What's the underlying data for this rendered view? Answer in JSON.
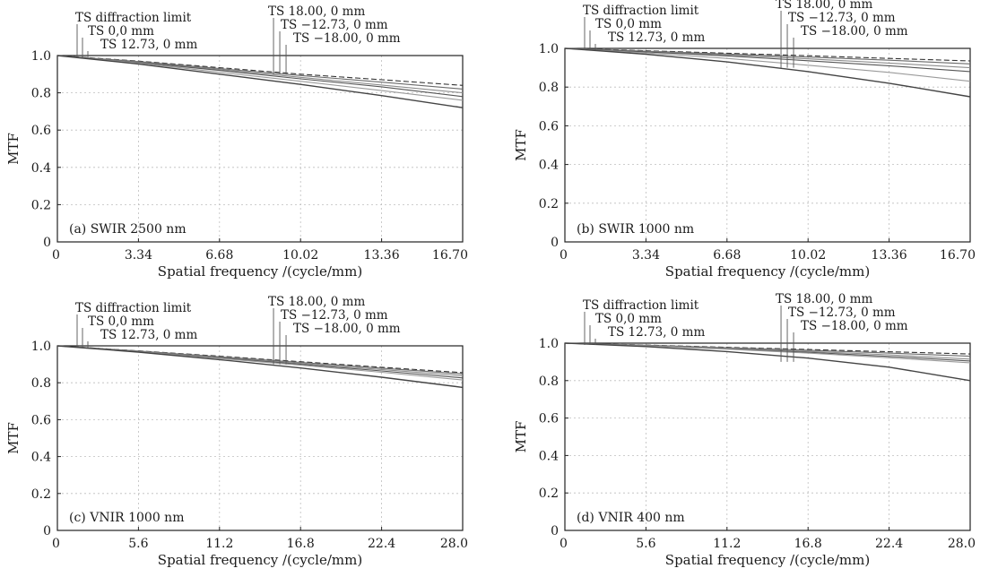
{
  "chart_data": [
    {
      "type": "line",
      "panel_label": "(a) SWIR 2500 nm",
      "xlabel": "Spatial frequency /(cycle/mm)",
      "ylabel": "MTF",
      "xlim": [
        0,
        16.7
      ],
      "ylim": [
        0,
        1.0
      ],
      "xticks": [
        "0",
        "3.34",
        "6.68",
        "10.02",
        "13.36",
        "16.70"
      ],
      "yticks": [
        "0",
        "0.2",
        "0.4",
        "0.6",
        "0.8",
        "1.0"
      ],
      "grid": true,
      "legend_labels": [
        "TS diffraction limit",
        "TS 0,0 mm",
        "TS 12.73, 0 mm",
        "TS 18.00, 0 mm",
        "TS −12.73, 0 mm",
        "TS −18.00, 0 mm"
      ],
      "x": [
        0,
        3.34,
        6.68,
        10.02,
        13.36,
        16.7
      ],
      "series": [
        {
          "values": [
            1.0,
            0.97,
            0.935,
            0.9,
            0.87,
            0.84
          ],
          "style": "dashed"
        },
        {
          "values": [
            1.0,
            0.968,
            0.93,
            0.893,
            0.857,
            0.82
          ],
          "style": "solid"
        },
        {
          "values": [
            1.0,
            0.965,
            0.925,
            0.883,
            0.842,
            0.8
          ],
          "style": "solid"
        },
        {
          "values": [
            1.0,
            0.963,
            0.92,
            0.875,
            0.832,
            0.78
          ],
          "style": "solid"
        },
        {
          "values": [
            1.0,
            0.96,
            0.91,
            0.862,
            0.812,
            0.76
          ],
          "style": "solid"
        },
        {
          "values": [
            1.0,
            0.955,
            0.9,
            0.845,
            0.785,
            0.72
          ],
          "style": "solid"
        }
      ]
    },
    {
      "type": "line",
      "panel_label": "(b) SWIR 1000 nm",
      "xlabel": "Spatial frequency /(cycle/mm)",
      "ylabel": "MTF",
      "xlim": [
        0,
        16.7
      ],
      "ylim": [
        0,
        1.0
      ],
      "xticks": [
        "0",
        "3.34",
        "6.68",
        "10.02",
        "13.36",
        "16.70"
      ],
      "yticks": [
        "0",
        "0.2",
        "0.4",
        "0.6",
        "0.8",
        "1.0"
      ],
      "grid": true,
      "legend_labels": [
        "TS diffraction limit",
        "TS 0,0 mm",
        "TS 12.73, 0 mm",
        "TS 18.00, 0 mm",
        "TS −12.73, 0 mm",
        "TS −18.00, 0 mm"
      ],
      "x": [
        0,
        3.34,
        6.68,
        10.02,
        13.36,
        16.7
      ],
      "series": [
        {
          "values": [
            1.0,
            0.988,
            0.975,
            0.962,
            0.948,
            0.935
          ],
          "style": "dashed"
        },
        {
          "values": [
            1.0,
            0.986,
            0.971,
            0.955,
            0.939,
            0.92
          ],
          "style": "solid"
        },
        {
          "values": [
            1.0,
            0.984,
            0.966,
            0.946,
            0.924,
            0.9
          ],
          "style": "solid"
        },
        {
          "values": [
            1.0,
            0.982,
            0.961,
            0.936,
            0.91,
            0.88
          ],
          "style": "solid"
        },
        {
          "values": [
            1.0,
            0.977,
            0.948,
            0.913,
            0.876,
            0.83
          ],
          "style": "solid"
        },
        {
          "values": [
            1.0,
            0.97,
            0.93,
            0.88,
            0.82,
            0.75
          ],
          "style": "solid"
        }
      ]
    },
    {
      "type": "line",
      "panel_label": "(c) VNIR 1000 nm",
      "xlabel": "Spatial frequency /(cycle/mm)",
      "ylabel": "MTF",
      "xlim": [
        0,
        28.0
      ],
      "ylim": [
        0,
        1.0
      ],
      "xticks": [
        "0",
        "5.6",
        "11.2",
        "16.8",
        "22.4",
        "28.0"
      ],
      "yticks": [
        "0",
        "0.2",
        "0.4",
        "0.6",
        "0.8",
        "1.0"
      ],
      "grid": true,
      "legend_labels": [
        "TS diffraction limit",
        "TS 0,0 mm",
        "TS 12.73, 0 mm",
        "TS 18.00, 0 mm",
        "TS −12.73, 0 mm",
        "TS −18.00, 0 mm"
      ],
      "x": [
        0,
        5.6,
        11.2,
        16.8,
        22.4,
        28.0
      ],
      "series": [
        {
          "values": [
            1.0,
            0.973,
            0.944,
            0.914,
            0.884,
            0.855
          ],
          "style": "dashed"
        },
        {
          "values": [
            1.0,
            0.972,
            0.941,
            0.91,
            0.879,
            0.848
          ],
          "style": "solid"
        },
        {
          "values": [
            1.0,
            0.971,
            0.938,
            0.905,
            0.872,
            0.838
          ],
          "style": "solid"
        },
        {
          "values": [
            1.0,
            0.97,
            0.935,
            0.9,
            0.864,
            0.826
          ],
          "style": "solid"
        },
        {
          "values": [
            1.0,
            0.969,
            0.932,
            0.895,
            0.857,
            0.815
          ],
          "style": "solid"
        },
        {
          "values": [
            1.0,
            0.966,
            0.925,
            0.88,
            0.83,
            0.775
          ],
          "style": "solid"
        }
      ]
    },
    {
      "type": "line",
      "panel_label": "(d) VNIR 400 nm",
      "xlabel": "Spatial frequency /(cycle/mm)",
      "ylabel": "MTF",
      "xlim": [
        0,
        28.0
      ],
      "ylim": [
        0,
        1.0
      ],
      "xticks": [
        "0",
        "5.6",
        "11.2",
        "16.8",
        "22.4",
        "28.0"
      ],
      "yticks": [
        "0",
        "0.2",
        "0.4",
        "0.6",
        "0.8",
        "1.0"
      ],
      "grid": true,
      "legend_labels": [
        "TS diffraction limit",
        "TS 0,0 mm",
        "TS 12.73, 0 mm",
        "TS 18.00, 0 mm",
        "TS −12.73, 0 mm",
        "TS −18.00, 0 mm"
      ],
      "x": [
        0,
        5.6,
        11.2,
        16.8,
        22.4,
        28.0
      ],
      "series": [
        {
          "values": [
            1.0,
            0.99,
            0.978,
            0.966,
            0.954,
            0.942
          ],
          "style": "dashed"
        },
        {
          "values": [
            1.0,
            0.989,
            0.976,
            0.962,
            0.947,
            0.93
          ],
          "style": "solid"
        },
        {
          "values": [
            1.0,
            0.988,
            0.973,
            0.956,
            0.938,
            0.915
          ],
          "style": "solid"
        },
        {
          "values": [
            1.0,
            0.987,
            0.97,
            0.951,
            0.929,
            0.905
          ],
          "style": "solid"
        },
        {
          "values": [
            1.0,
            0.986,
            0.968,
            0.947,
            0.922,
            0.895
          ],
          "style": "solid"
        },
        {
          "values": [
            1.0,
            0.982,
            0.955,
            0.92,
            0.872,
            0.8
          ],
          "style": "solid"
        }
      ]
    }
  ]
}
